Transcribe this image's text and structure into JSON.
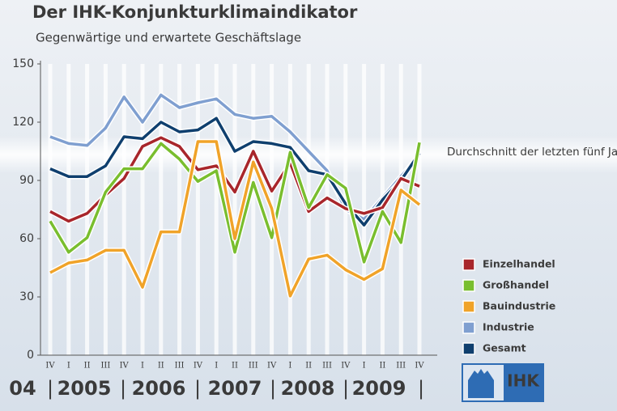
{
  "chart_data": {
    "type": "line",
    "title": "Der IHK-Konjunkturklimaindikator",
    "subtitle": "Gegenwärtige und erwartete Geschäftslage",
    "annotation": "Durchschnitt der letzten fünf Jahre",
    "categories": [
      "IV",
      "I",
      "II",
      "III",
      "IV",
      "I",
      "II",
      "III",
      "IV",
      "I",
      "II",
      "III",
      "IV",
      "I",
      "II",
      "III",
      "IV",
      "I",
      "II",
      "III",
      "IV"
    ],
    "years": [
      "04",
      "2005",
      "2006",
      "2007",
      "2008",
      "2009"
    ],
    "ylim": [
      0,
      150
    ],
    "yticks": [
      0,
      30,
      60,
      90,
      120,
      150
    ],
    "series": [
      {
        "name": "Industrie",
        "color": "#7f9fd0",
        "values": [
          112.5,
          109,
          108,
          117,
          133,
          120,
          134,
          127.5,
          130,
          132,
          124,
          122,
          123,
          115,
          105,
          95,
          75,
          70,
          81,
          92,
          103
        ]
      },
      {
        "name": "Gesamt",
        "color": "#0f3f6e",
        "values": [
          96,
          92,
          92,
          97.5,
          112.5,
          111.5,
          120,
          115,
          116,
          122,
          105,
          110,
          109,
          107,
          95,
          93,
          78,
          67,
          80,
          90,
          104
        ]
      },
      {
        "name": "Einzelhandel",
        "color": "#a8262b",
        "values": [
          74,
          69,
          73,
          82.5,
          91,
          107.5,
          112,
          107.5,
          95.5,
          97.5,
          84,
          105,
          84.5,
          99,
          74,
          81,
          75.5,
          73,
          76,
          91,
          87
        ]
      },
      {
        "name": "Großhandel",
        "color": "#79be2e",
        "values": [
          69,
          53,
          60.5,
          84,
          96,
          96,
          109,
          101,
          89.5,
          95,
          53,
          89,
          60.5,
          104.5,
          76,
          93,
          86,
          48,
          74,
          58,
          109.5
        ]
      },
      {
        "name": "Bauindustrie",
        "color": "#f0a329",
        "values": [
          42.5,
          47.5,
          49,
          54,
          54,
          35,
          63.5,
          63.5,
          110,
          110,
          60,
          99.5,
          75.5,
          30.5,
          49.5,
          51.5,
          44,
          39,
          44.5,
          85,
          77.5
        ]
      }
    ],
    "legend_order": [
      2,
      3,
      4,
      0,
      1
    ],
    "logo": "IHK"
  }
}
